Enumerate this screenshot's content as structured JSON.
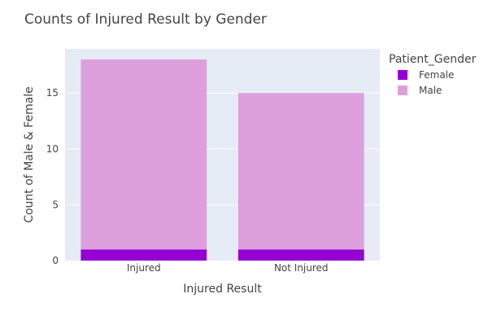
{
  "chart_data": {
    "type": "bar",
    "stacked": true,
    "title": "Counts of Injured Result by Gender",
    "xlabel": "Injured Result",
    "ylabel": "Count of Male & Female",
    "categories": [
      "Injured",
      "Not Injured"
    ],
    "series": [
      {
        "name": "Female",
        "values": [
          1,
          1
        ],
        "color": "#9400d3"
      },
      {
        "name": "Male",
        "values": [
          17,
          14
        ],
        "color": "#dda0dd"
      }
    ],
    "ylim": [
      0,
      18.95
    ],
    "yticks": [
      0,
      5,
      10,
      15
    ],
    "grid": true,
    "plot_background": "#e5ecf6",
    "legend": {
      "title": "Patient_Gender",
      "position": "top-right"
    }
  }
}
